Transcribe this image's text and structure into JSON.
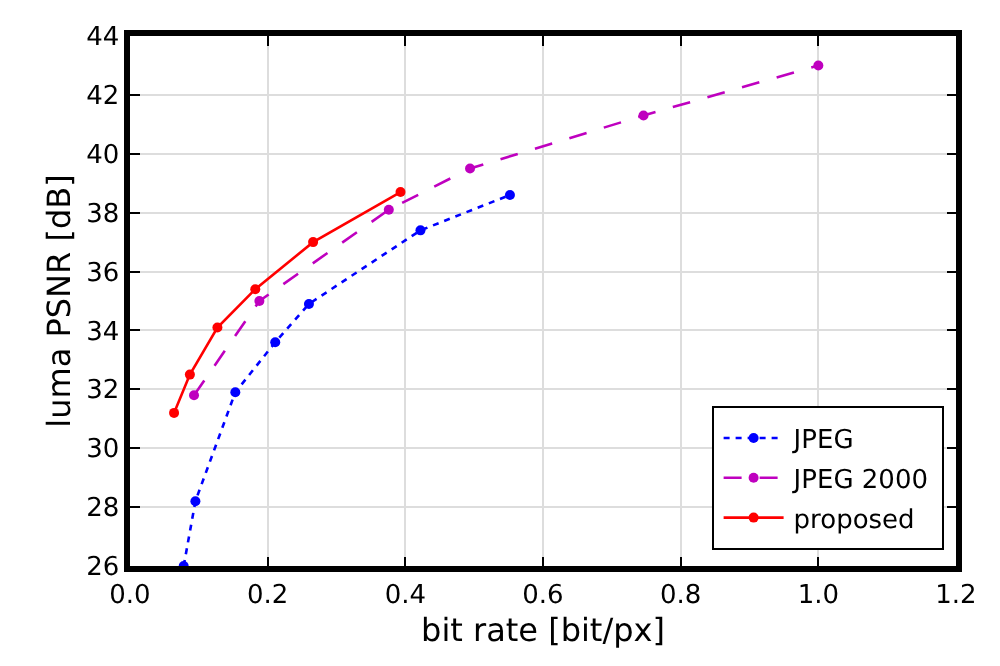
{
  "chart_data": {
    "type": "line",
    "xlabel": "bit rate [bit/px]",
    "ylabel": "luma PSNR [dB]",
    "xlim": [
      0.0,
      1.2
    ],
    "xticks": [
      {
        "value": 0,
        "label": "0.0"
      },
      {
        "value": 0.2,
        "label": "0.2"
      },
      {
        "value": 0.4,
        "label": "0.4"
      },
      {
        "value": 0.6,
        "label": "0.6"
      },
      {
        "value": 0.8,
        "label": "0.8"
      },
      {
        "value": 1.0,
        "label": "1.0"
      },
      {
        "value": 1.2,
        "label": "1.2"
      }
    ],
    "ylim": [
      26,
      44
    ],
    "yticks": [
      26,
      28,
      30,
      32,
      34,
      36,
      38,
      40,
      42,
      44
    ],
    "grid": true,
    "legend": "bottom right",
    "marker": "circle",
    "series": [
      {
        "name": "JPEG",
        "color": "#0000ff",
        "line_style": "dotted",
        "x": [
          0.078,
          0.095,
          0.153,
          0.211,
          0.26,
          0.422,
          0.552
        ],
        "values": [
          26.0,
          28.2,
          31.9,
          33.6,
          34.9,
          37.4,
          38.6
        ]
      },
      {
        "name": "JPEG 2000",
        "color": "#bf00bf",
        "line_style": "dashed",
        "x": [
          0.093,
          0.188,
          0.376,
          0.494,
          0.746,
          1.0
        ],
        "values": [
          31.8,
          35.0,
          38.1,
          39.5,
          41.3,
          43.0
        ]
      },
      {
        "name": "proposed",
        "color": "#ff0000",
        "line_style": "solid",
        "x": [
          0.064,
          0.087,
          0.127,
          0.182,
          0.266,
          0.393
        ],
        "values": [
          31.2,
          32.5,
          34.1,
          35.4,
          37.0,
          38.7
        ]
      }
    ]
  }
}
